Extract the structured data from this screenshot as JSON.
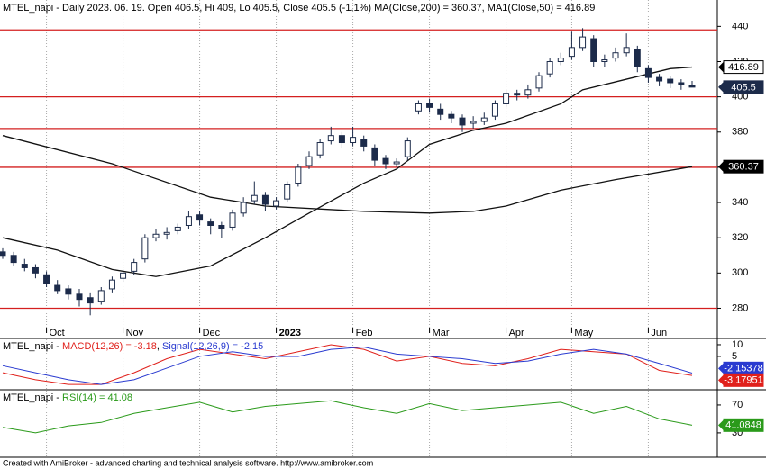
{
  "chart_data": [
    {
      "type": "candlestick",
      "title": "MTEL_napi - Daily 2023. 06. 19. Open 406.5, Hi 409, Lo 405.5, Close 405.5 (-1.1%) MA(Close,200) = 360.37, MA1(Close,50) = 416.89",
      "categories": [
        null,
        null,
        null,
        null,
        "Oct",
        null,
        null,
        null,
        null,
        null,
        null,
        "Nov",
        null,
        null,
        null,
        null,
        null,
        null,
        "Dec",
        null,
        null,
        null,
        null,
        null,
        null,
        "2023",
        null,
        null,
        null,
        null,
        null,
        null,
        "Feb",
        null,
        null,
        null,
        null,
        null,
        null,
        "Mar",
        null,
        null,
        null,
        null,
        null,
        null,
        "Apr",
        null,
        null,
        null,
        null,
        null,
        "May",
        null,
        null,
        null,
        null,
        null,
        null,
        "Jun",
        null,
        null,
        null,
        null
      ],
      "open": [
        312,
        310,
        305,
        303,
        299,
        293,
        291,
        288,
        286,
        284,
        291,
        297,
        301,
        308,
        320,
        322,
        324,
        327,
        333,
        329,
        327,
        326,
        334,
        341,
        344,
        338,
        342,
        351,
        361,
        367,
        375,
        378,
        374,
        376,
        371,
        365,
        362,
        366,
        392,
        396,
        393,
        390,
        388,
        385,
        386,
        389,
        396,
        402,
        401,
        405,
        413,
        420,
        423,
        428,
        433,
        420,
        422,
        425,
        427,
        416,
        411,
        410,
        408,
        406.5
      ],
      "high": [
        314,
        312,
        308,
        305,
        301,
        296,
        293,
        291,
        289,
        292,
        298,
        302,
        308,
        322,
        325,
        326,
        328,
        335,
        335,
        331,
        329,
        336,
        343,
        352,
        346,
        343,
        352,
        362,
        369,
        376,
        383,
        380,
        383,
        378,
        373,
        367,
        365,
        377,
        398,
        399,
        396,
        392,
        390,
        389,
        391,
        398,
        404,
        404,
        407,
        414,
        422,
        425,
        437,
        439,
        435,
        424,
        428,
        436,
        429,
        418,
        413,
        412,
        410,
        409
      ],
      "low": [
        308,
        304,
        301,
        297,
        292,
        288,
        285,
        281,
        276,
        282,
        289,
        295,
        299,
        306,
        318,
        319,
        322,
        325,
        327,
        322,
        320,
        324,
        332,
        339,
        335,
        336,
        340,
        349,
        359,
        365,
        373,
        371,
        372,
        369,
        361,
        359,
        360,
        364,
        390,
        391,
        387,
        385,
        380,
        382,
        384,
        387,
        394,
        398,
        399,
        403,
        411,
        418,
        421,
        426,
        417,
        417,
        420,
        423,
        414,
        408,
        406,
        405,
        404,
        405.5
      ],
      "close": [
        310,
        306,
        303,
        300,
        294,
        290,
        288,
        285,
        283,
        290,
        296,
        300,
        306,
        320,
        322,
        323,
        326,
        332,
        330,
        327,
        325,
        334,
        340,
        344,
        339,
        341,
        350,
        360,
        366,
        374,
        378,
        374,
        377,
        372,
        364,
        362,
        363,
        375,
        396,
        394,
        390,
        388,
        384,
        386,
        388,
        396,
        402,
        401,
        404,
        412,
        420,
        422,
        428,
        434,
        420,
        421,
        425,
        428,
        417,
        411,
        409,
        408,
        407,
        405.5
      ],
      "up_color": "#ffffff",
      "down_color": "#1c2b4a",
      "outline_color": "#1c2b4a",
      "series": [
        {
          "color": "#111111",
          "x": [
            0,
            10,
            19,
            24,
            33,
            39,
            43,
            46,
            51,
            56,
            63
          ],
          "values": [
            378,
            362,
            343,
            338,
            335,
            334,
            335,
            338,
            347,
            353,
            360.37
          ]
        },
        {
          "color": "#111111",
          "x": [
            0,
            5,
            10,
            14,
            19,
            24,
            28,
            33,
            36,
            39,
            43,
            46,
            51,
            53,
            57,
            61,
            63
          ],
          "values": [
            320,
            313,
            302,
            298,
            304,
            320,
            334,
            351,
            359,
            373,
            381,
            385,
            396,
            404,
            410,
            416,
            416.89
          ]
        }
      ],
      "hlines": [
        438,
        400,
        382,
        360,
        280
      ],
      "hline_color": "#d42020",
      "ylim": [
        269,
        455
      ],
      "yticks": [
        280,
        300,
        320,
        340,
        360,
        380,
        400,
        420,
        440
      ],
      "grid": true
    },
    {
      "type": "line",
      "label": "MTEL_napi - ",
      "separator": ", ",
      "x": [
        0,
        3,
        6,
        9,
        12,
        15,
        18,
        21,
        24,
        27,
        30,
        33,
        36,
        39,
        42,
        45,
        48,
        51,
        54,
        57,
        60,
        63
      ],
      "series": [
        {
          "name": "MACD(12,26) = -3.18",
          "color": "#e0201b",
          "values": [
            -2,
            -5,
            -7,
            -7,
            -2,
            4,
            8,
            6,
            4,
            7,
            10,
            8,
            3,
            5,
            2,
            1,
            4,
            8,
            7,
            6,
            -1,
            -3.17951
          ]
        },
        {
          "name": "Signal(12,26,9) = -2.15",
          "color": "#2a3bd0",
          "values": [
            1,
            -2,
            -5,
            -7,
            -5,
            0,
            5,
            7,
            5,
            5,
            8,
            9,
            6,
            5,
            4,
            2,
            3,
            6,
            8,
            6,
            2,
            -2.15378
          ]
        }
      ],
      "ylim": [
        -8.9,
        12.3
      ],
      "yticks": [
        10,
        5
      ]
    },
    {
      "type": "line",
      "label": "MTEL_napi - ",
      "x": [
        0,
        3,
        6,
        9,
        12,
        15,
        18,
        21,
        24,
        27,
        30,
        33,
        36,
        39,
        42,
        45,
        48,
        51,
        54,
        57,
        60,
        63
      ],
      "series": [
        {
          "name": "RSI(14) = 41.08",
          "color": "#2a9a1a",
          "values": [
            38,
            30,
            40,
            45,
            58,
            66,
            74,
            60,
            68,
            72,
            76,
            66,
            58,
            72,
            62,
            66,
            70,
            74,
            58,
            68,
            50,
            41.0848
          ]
        }
      ],
      "ylim": [
        -5,
        90.6
      ],
      "yticks": [
        70,
        30
      ]
    }
  ],
  "footer": "Created with AmiBroker - advanced charting and technical analysis software. http://www.amibroker.com"
}
